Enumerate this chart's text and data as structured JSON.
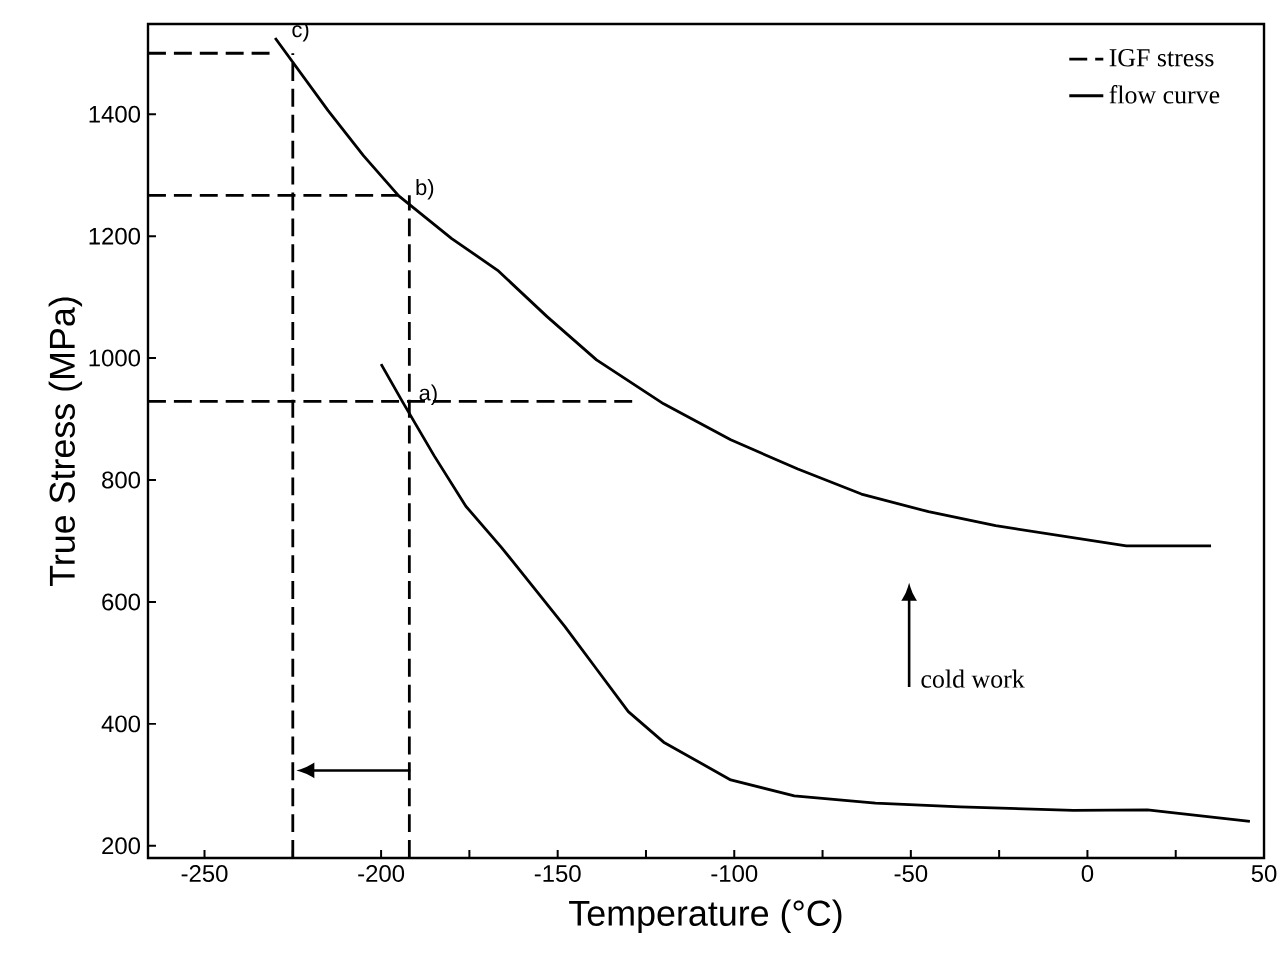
{
  "chart_data": {
    "type": "line",
    "xlabel": "Temperature (°C)",
    "ylabel": "True Stress (MPa)",
    "xlim": [
      -266,
      50
    ],
    "ylim": [
      180,
      1548
    ],
    "xticks": [
      -250,
      {
        "value": -225,
        "label": null
      },
      -200,
      {
        "value": -175,
        "label": null
      },
      -150,
      {
        "value": -125,
        "label": null
      },
      -100,
      {
        "value": -75,
        "label": null
      },
      -50,
      {
        "value": -25,
        "label": null
      },
      0,
      {
        "value": 25,
        "label": null
      },
      50
    ],
    "yticks": [
      200,
      400,
      600,
      800,
      1000,
      1200,
      1400
    ],
    "legend": "top right",
    "grid": false,
    "series": [
      {
        "name": "IGF stress",
        "color": "#000000",
        "line_style": "dashed",
        "x": [
          -266,
          -230
        ],
        "values": [
          1500,
          1500
        ]
      },
      {
        "color": "#000000",
        "line_style": "dashed",
        "x": [
          -266,
          -194
        ],
        "values": [
          1267,
          1267
        ]
      },
      {
        "color": "#000000",
        "line_style": "dashed",
        "x": [
          -266,
          -128
        ],
        "values": [
          929,
          929
        ]
      },
      {
        "color": "#000000",
        "line_style": "dashed",
        "x": [
          -225,
          -225
        ],
        "values": [
          180,
          1500
        ]
      },
      {
        "color": "#000000",
        "line_style": "dashed",
        "x": [
          -192,
          -192
        ],
        "values": [
          180,
          1267
        ]
      },
      {
        "name": "flow curve",
        "color": "#000000",
        "line_style": "solid",
        "x": [
          -230,
          -215,
          -205,
          -195,
          -180,
          -167,
          -153,
          -139,
          -120,
          -101,
          -82,
          -64,
          -45,
          -26,
          11,
          35
        ],
        "values": [
          1525,
          1406,
          1332,
          1266,
          1196,
          1144,
          1068,
          997,
          925,
          866,
          818,
          777,
          748,
          725,
          692,
          692
        ]
      },
      {
        "color": "#000000",
        "line_style": "solid",
        "x": [
          -200,
          -194,
          -185,
          -176,
          -166,
          -157,
          -148,
          -139,
          -130,
          -120,
          -101,
          -83,
          -60,
          -36,
          -4,
          17,
          46
        ],
        "values": [
          990,
          929,
          840,
          757,
          690,
          625,
          560,
          490,
          420,
          370,
          308,
          282,
          270,
          264,
          258,
          259,
          240
        ]
      }
    ],
    "annotations": [
      {
        "text": "a)",
        "x": -194,
        "y": 929
      },
      {
        "text": "b)",
        "x": -195,
        "y": 1266
      },
      {
        "text": "c)",
        "x": -230,
        "y": 1525
      },
      "cold work"
    ]
  }
}
